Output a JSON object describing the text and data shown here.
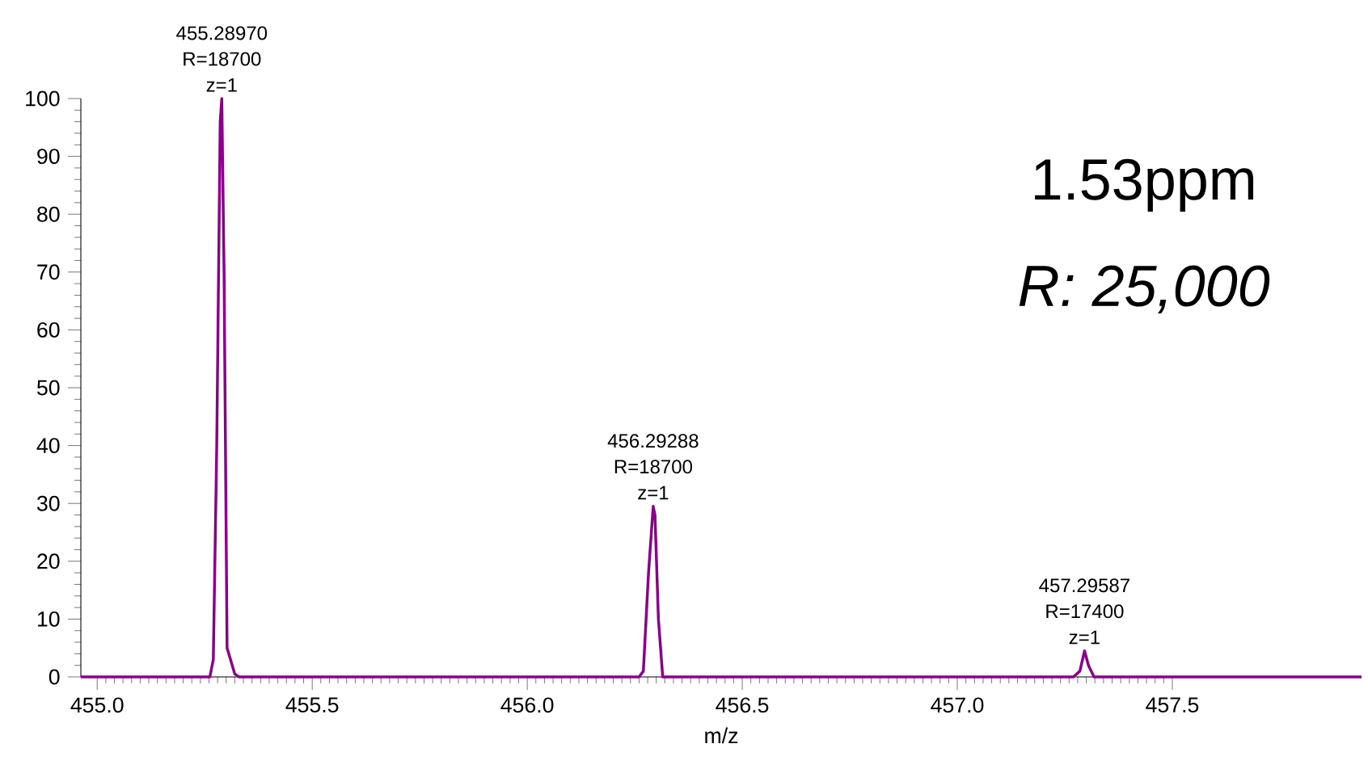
{
  "chart_data": {
    "type": "line",
    "xlabel": "m/z",
    "color": "#8b008b",
    "x": [
      454.962,
      455.2,
      455.262,
      455.27,
      455.278,
      455.286,
      455.2897,
      455.295,
      455.302,
      455.31,
      455.32,
      455.33,
      456.26,
      456.27,
      456.282,
      456.29288,
      456.297,
      456.305,
      456.315,
      457.27,
      457.285,
      457.29587,
      457.305,
      457.318,
      457.94
    ],
    "values": [
      0,
      0,
      0,
      3,
      40,
      96,
      100,
      70,
      5,
      3,
      0.5,
      0,
      0,
      1,
      18,
      29.5,
      28,
      10,
      0,
      0,
      1,
      4.5,
      2,
      0,
      0
    ],
    "xlim": [
      454.962,
      457.94
    ],
    "ylim": [
      0,
      100
    ],
    "xticks": [
      {
        "value": 455.0,
        "label": "455.0"
      },
      {
        "value": 455.5,
        "label": "455.5"
      },
      {
        "value": 456.0,
        "label": "456.0"
      },
      {
        "value": 456.5,
        "label": "456.5"
      },
      {
        "value": 457.0,
        "label": "457.0"
      },
      {
        "value": 457.5,
        "label": "457.5"
      }
    ],
    "yticks": [
      0,
      10,
      20,
      30,
      40,
      50,
      60,
      70,
      80,
      90,
      100
    ],
    "grid": false,
    "marker": "none",
    "line_style": "solid",
    "annotations": [
      "455.28970",
      "R=18700",
      {
        "text": "z=1",
        "x": 455.2897,
        "y": 100
      },
      "456.29288",
      "R=18700",
      {
        "text": "z=1",
        "x": 456.29288,
        "y": 29.5
      },
      "457.29587",
      "R=17400",
      {
        "text": "z=1",
        "x": 457.29587,
        "y": 4.5
      },
      "1.53ppm",
      "*R: 25,000*"
    ]
  }
}
